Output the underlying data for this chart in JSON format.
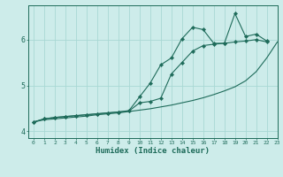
{
  "title": "",
  "xlabel": "Humidex (Indice chaleur)",
  "ylabel": "",
  "bg_color": "#cdecea",
  "line_color": "#1e6b5a",
  "grid_color": "#a8d8d4",
  "xlim": [
    -0.5,
    23
  ],
  "ylim": [
    3.85,
    6.75
  ],
  "x": [
    0,
    1,
    2,
    3,
    4,
    5,
    6,
    7,
    8,
    9,
    10,
    11,
    12,
    13,
    14,
    15,
    16,
    17,
    18,
    19,
    20,
    21,
    22,
    23
  ],
  "line1_x": [
    0,
    1,
    2,
    3,
    4,
    5,
    6,
    7,
    8,
    9,
    10,
    11,
    12,
    13,
    14,
    15,
    16,
    17,
    18,
    19,
    20,
    21,
    22
  ],
  "line1_y": [
    4.2,
    4.27,
    4.3,
    4.32,
    4.34,
    4.36,
    4.38,
    4.4,
    4.42,
    4.44,
    4.62,
    4.65,
    4.72,
    5.25,
    5.5,
    5.75,
    5.87,
    5.9,
    5.92,
    5.95,
    5.97,
    6.0,
    5.95
  ],
  "line2_x": [
    0,
    1,
    2,
    3,
    4,
    5,
    6,
    7,
    8,
    9,
    10,
    11,
    12,
    13,
    14,
    15,
    16,
    17,
    18,
    19,
    20,
    21,
    22,
    23
  ],
  "line2_y": [
    4.2,
    4.25,
    4.27,
    4.29,
    4.31,
    4.33,
    4.36,
    4.38,
    4.4,
    4.43,
    4.46,
    4.49,
    4.53,
    4.57,
    4.62,
    4.67,
    4.73,
    4.8,
    4.88,
    4.97,
    5.1,
    5.3,
    5.6,
    5.95
  ],
  "line3_x": [
    0,
    1,
    2,
    3,
    4,
    5,
    6,
    7,
    8,
    9,
    10,
    11,
    12,
    13,
    14,
    15,
    16,
    17,
    18,
    19,
    20,
    21,
    22
  ],
  "line3_y": [
    4.2,
    4.27,
    4.3,
    4.32,
    4.34,
    4.36,
    4.38,
    4.4,
    4.42,
    4.45,
    4.75,
    5.05,
    5.45,
    5.6,
    6.02,
    6.27,
    6.22,
    5.92,
    5.92,
    6.57,
    6.07,
    6.12,
    5.97
  ],
  "yticks": [
    4,
    5,
    6
  ],
  "xticks": [
    0,
    1,
    2,
    3,
    4,
    5,
    6,
    7,
    8,
    9,
    10,
    11,
    12,
    13,
    14,
    15,
    16,
    17,
    18,
    19,
    20,
    21,
    22,
    23
  ]
}
